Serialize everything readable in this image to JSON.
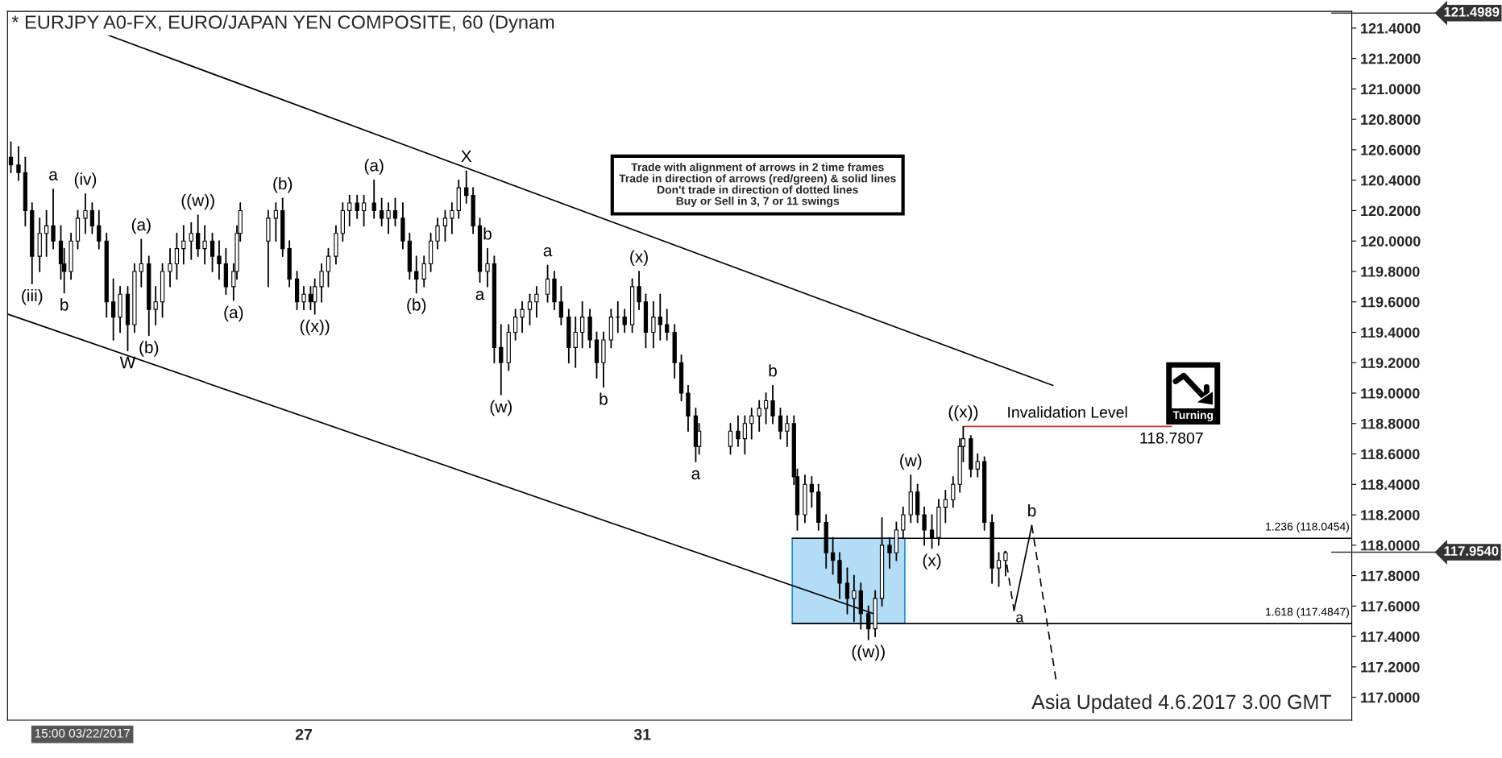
{
  "chart_data": {
    "type": "candlestick",
    "title": "* EURJPY A0-FX, EURO/JAPAN YEN COMPOSITE, 60 (Dynam",
    "xlim": [
      23.5,
      39.38
    ],
    "xticks": [
      27,
      31
    ],
    "ylim": [
      116.85,
      121.51
    ],
    "yticks": [
      {
        "value": 117.0,
        "label": "117.0000"
      },
      {
        "value": 117.2,
        "label": "117.2000"
      },
      {
        "value": 117.4,
        "label": "117.4000"
      },
      {
        "value": 117.6,
        "label": "117.6000"
      },
      {
        "value": 117.8,
        "label": "117.8000"
      },
      {
        "value": 118.0,
        "label": "118.0000"
      },
      {
        "value": 118.2,
        "label": "118.2000"
      },
      {
        "value": 118.4,
        "label": "118.4000"
      },
      {
        "value": 118.6,
        "label": "118.6000"
      },
      {
        "value": 118.8,
        "label": "118.8000"
      },
      {
        "value": 119.0,
        "label": "119.0000"
      },
      {
        "value": 119.2,
        "label": "119.2000"
      },
      {
        "value": 119.4,
        "label": "119.4000"
      },
      {
        "value": 119.6,
        "label": "119.6000"
      },
      {
        "value": 119.8,
        "label": "119.8000"
      },
      {
        "value": 120.0,
        "label": "120.0000"
      },
      {
        "value": 120.2,
        "label": "120.2000"
      },
      {
        "value": 120.4,
        "label": "120.4000"
      },
      {
        "value": 120.6,
        "label": "120.6000"
      },
      {
        "value": 120.8,
        "label": "120.8000"
      },
      {
        "value": 121.0,
        "label": "121.0000"
      },
      {
        "value": 121.2,
        "label": "121.2000"
      },
      {
        "value": 121.4,
        "label": "121.4000"
      }
    ],
    "grid": false,
    "legend": false,
    "color": "#000000",
    "x": [
      23.54,
      23.63,
      23.71,
      23.79,
      23.88,
      23.96,
      24.04,
      24.13,
      24.17,
      24.25,
      24.33,
      24.42,
      24.5,
      24.58,
      24.67,
      24.75,
      24.83,
      24.92,
      25,
      25.08,
      25.17,
      25.25,
      25.33,
      25.42,
      25.5,
      25.58,
      25.67,
      25.75,
      25.83,
      25.92,
      26,
      26.08,
      26.17,
      26.21,
      26.25,
      26.58,
      26.67,
      26.75,
      26.83,
      26.92,
      27,
      27.08,
      27.13,
      27.21,
      27.29,
      27.38,
      27.46,
      27.54,
      27.63,
      27.71,
      27.83,
      27.92,
      28,
      28.08,
      28.17,
      28.25,
      28.33,
      28.42,
      28.5,
      28.58,
      28.67,
      28.75,
      28.83,
      28.92,
      29,
      29.08,
      29.17,
      29.25,
      29.33,
      29.42,
      29.5,
      29.58,
      29.67,
      29.75,
      29.88,
      29.96,
      30.04,
      30.13,
      30.21,
      30.29,
      30.38,
      30.46,
      30.54,
      30.63,
      30.71,
      30.79,
      30.88,
      30.96,
      31.04,
      31.13,
      31.21,
      31.29,
      31.38,
      31.46,
      31.54,
      31.63,
      31.67,
      32.04,
      32.13,
      32.21,
      32.29,
      32.38,
      32.46,
      32.54,
      32.63,
      32.71,
      32.79,
      32.83,
      32.92,
      33,
      33.08,
      33.17,
      33.25,
      33.33,
      33.42,
      33.5,
      33.58,
      33.67,
      33.75,
      33.83,
      33.92,
      34,
      34.08,
      34.17,
      34.25,
      34.33,
      34.42,
      34.5,
      34.58,
      34.67,
      34.75,
      34.79,
      34.88,
      34.96,
      35.04,
      35.13,
      35.21,
      35.29
    ],
    "ohlc": [
      [
        120.55,
        120.65,
        120.45,
        120.5
      ],
      [
        120.5,
        120.62,
        120.4,
        120.45
      ],
      [
        120.45,
        120.55,
        120.1,
        120.2
      ],
      [
        120.2,
        120.25,
        119.72,
        119.9
      ],
      [
        119.9,
        120.15,
        119.8,
        120.05
      ],
      [
        120.05,
        120.2,
        119.9,
        120.1
      ],
      [
        120.1,
        120.34,
        119.95,
        120.0
      ],
      [
        120.0,
        120.1,
        119.75,
        119.85
      ],
      [
        119.85,
        119.95,
        119.66,
        119.8
      ],
      [
        119.8,
        120.05,
        119.75,
        120.0
      ],
      [
        120.0,
        120.2,
        119.95,
        120.15
      ],
      [
        120.15,
        120.31,
        120.05,
        120.2
      ],
      [
        120.2,
        120.25,
        120.05,
        120.1
      ],
      [
        120.1,
        120.2,
        119.95,
        120.0
      ],
      [
        120.0,
        120.05,
        119.5,
        119.6
      ],
      [
        119.6,
        119.75,
        119.35,
        119.5
      ],
      [
        119.5,
        119.7,
        119.4,
        119.65
      ],
      [
        119.65,
        119.7,
        119.28,
        119.45
      ],
      [
        119.45,
        119.85,
        119.4,
        119.8
      ],
      [
        119.8,
        120.01,
        119.7,
        119.85
      ],
      [
        119.85,
        119.9,
        119.38,
        119.55
      ],
      [
        119.55,
        119.7,
        119.45,
        119.6
      ],
      [
        119.6,
        119.85,
        119.5,
        119.8
      ],
      [
        119.8,
        119.95,
        119.7,
        119.85
      ],
      [
        119.85,
        120.05,
        119.75,
        119.95
      ],
      [
        119.95,
        120.1,
        119.85,
        120.0
      ],
      [
        120.0,
        120.12,
        119.88,
        120.05
      ],
      [
        120.05,
        120.17,
        119.9,
        119.95
      ],
      [
        119.95,
        120.1,
        119.85,
        120.0
      ],
      [
        120.0,
        120.05,
        119.8,
        119.9
      ],
      [
        119.9,
        120.0,
        119.75,
        119.85
      ],
      [
        119.85,
        119.95,
        119.65,
        119.7
      ],
      [
        119.7,
        119.85,
        119.61,
        119.8
      ],
      [
        119.8,
        120.1,
        119.75,
        120.05
      ],
      [
        120.05,
        120.25,
        120.0,
        120.2
      ],
      [
        120.0,
        120.2,
        119.7,
        120.15
      ],
      [
        120.15,
        120.25,
        120.0,
        120.2
      ],
      [
        120.2,
        120.28,
        119.9,
        119.95
      ],
      [
        119.95,
        120.0,
        119.7,
        119.75
      ],
      [
        119.75,
        119.8,
        119.55,
        119.6
      ],
      [
        119.6,
        119.7,
        119.55,
        119.65
      ],
      [
        119.65,
        119.7,
        119.55,
        119.6
      ],
      [
        119.6,
        119.75,
        119.52,
        119.7
      ],
      [
        119.7,
        119.85,
        119.6,
        119.8
      ],
      [
        119.8,
        119.95,
        119.7,
        119.9
      ],
      [
        119.9,
        120.1,
        119.85,
        120.05
      ],
      [
        120.05,
        120.25,
        120.0,
        120.2
      ],
      [
        120.2,
        120.3,
        120.1,
        120.25
      ],
      [
        120.25,
        120.3,
        120.15,
        120.2
      ],
      [
        120.2,
        120.3,
        120.1,
        120.25
      ],
      [
        120.25,
        120.4,
        120.15,
        120.2
      ],
      [
        120.2,
        120.28,
        120.1,
        120.15
      ],
      [
        120.15,
        120.25,
        120.05,
        120.2
      ],
      [
        120.2,
        120.28,
        120.1,
        120.15
      ],
      [
        120.15,
        120.25,
        119.95,
        120.0
      ],
      [
        120.0,
        120.05,
        119.75,
        119.8
      ],
      [
        119.8,
        119.9,
        119.66,
        119.75
      ],
      [
        119.75,
        119.9,
        119.7,
        119.85
      ],
      [
        119.85,
        120.05,
        119.8,
        120.0
      ],
      [
        120.0,
        120.15,
        119.95,
        120.1
      ],
      [
        120.1,
        120.2,
        120.0,
        120.15
      ],
      [
        120.15,
        120.25,
        120.05,
        120.2
      ],
      [
        120.2,
        120.4,
        120.15,
        120.35
      ],
      [
        120.35,
        120.46,
        120.25,
        120.3
      ],
      [
        120.3,
        120.35,
        120.05,
        120.1
      ],
      [
        120.1,
        120.15,
        119.73,
        119.8
      ],
      [
        119.8,
        119.95,
        119.7,
        119.85
      ],
      [
        119.85,
        119.9,
        119.2,
        119.3
      ],
      [
        119.3,
        119.45,
        118.99,
        119.2
      ],
      [
        119.2,
        119.45,
        119.15,
        119.4
      ],
      [
        119.4,
        119.55,
        119.35,
        119.5
      ],
      [
        119.5,
        119.6,
        119.4,
        119.55
      ],
      [
        119.55,
        119.65,
        119.45,
        119.6
      ],
      [
        119.6,
        119.7,
        119.5,
        119.65
      ],
      [
        119.65,
        119.84,
        119.6,
        119.75
      ],
      [
        119.75,
        119.8,
        119.55,
        119.6
      ],
      [
        119.6,
        119.7,
        119.45,
        119.5
      ],
      [
        119.5,
        119.55,
        119.2,
        119.3
      ],
      [
        119.3,
        119.5,
        119.17,
        119.4
      ],
      [
        119.4,
        119.6,
        119.3,
        119.5
      ],
      [
        119.5,
        119.55,
        119.3,
        119.35
      ],
      [
        119.35,
        119.4,
        119.1,
        119.2
      ],
      [
        119.2,
        119.4,
        119.04,
        119.35
      ],
      [
        119.35,
        119.55,
        119.3,
        119.5
      ],
      [
        119.5,
        119.6,
        119.4,
        119.5
      ],
      [
        119.5,
        119.55,
        119.4,
        119.45
      ],
      [
        119.45,
        119.75,
        119.4,
        119.7
      ],
      [
        119.7,
        119.8,
        119.55,
        119.6
      ],
      [
        119.6,
        119.65,
        119.3,
        119.4
      ],
      [
        119.4,
        119.6,
        119.3,
        119.5
      ],
      [
        119.5,
        119.65,
        119.35,
        119.45
      ],
      [
        119.45,
        119.55,
        119.35,
        119.4
      ],
      [
        119.4,
        119.45,
        119.1,
        119.2
      ],
      [
        119.2,
        119.25,
        118.95,
        119.0
      ],
      [
        119.0,
        119.05,
        118.75,
        118.85
      ],
      [
        118.85,
        118.9,
        118.55,
        118.65
      ],
      [
        118.65,
        118.8,
        118.6,
        118.75
      ],
      [
        118.65,
        118.8,
        118.6,
        118.75
      ],
      [
        118.75,
        118.85,
        118.65,
        118.7
      ],
      [
        118.7,
        118.85,
        118.6,
        118.8
      ],
      [
        118.8,
        118.9,
        118.7,
        118.85
      ],
      [
        118.85,
        118.95,
        118.75,
        118.9
      ],
      [
        118.9,
        119.0,
        118.8,
        118.95
      ],
      [
        118.95,
        119.05,
        118.8,
        118.85
      ],
      [
        118.85,
        118.9,
        118.7,
        118.75
      ],
      [
        118.75,
        118.85,
        118.65,
        118.8
      ],
      [
        118.8,
        118.85,
        118.4,
        118.45
      ],
      [
        118.45,
        118.5,
        118.1,
        118.2
      ],
      [
        118.2,
        118.46,
        118.15,
        118.4
      ],
      [
        118.4,
        118.45,
        118.25,
        118.35
      ],
      [
        118.35,
        118.4,
        118.1,
        118.15
      ],
      [
        118.15,
        118.2,
        117.85,
        117.95
      ],
      [
        117.95,
        118.05,
        117.81,
        117.9
      ],
      [
        117.9,
        117.95,
        117.65,
        117.75
      ],
      [
        117.75,
        117.85,
        117.55,
        117.65
      ],
      [
        117.65,
        117.8,
        117.5,
        117.7
      ],
      [
        117.7,
        117.75,
        117.45,
        117.55
      ],
      [
        117.55,
        117.6,
        117.38,
        117.45
      ],
      [
        117.45,
        117.7,
        117.4,
        117.65
      ],
      [
        117.65,
        118.18,
        117.6,
        118.0
      ],
      [
        118.0,
        118.05,
        117.85,
        117.95
      ],
      [
        117.95,
        118.15,
        117.9,
        118.1
      ],
      [
        118.1,
        118.25,
        118.05,
        118.2
      ],
      [
        118.2,
        118.46,
        118.15,
        118.35
      ],
      [
        118.35,
        118.4,
        118.15,
        118.2
      ],
      [
        118.2,
        118.25,
        118.0,
        118.1
      ],
      [
        118.1,
        118.2,
        117.98,
        118.05
      ],
      [
        118.05,
        118.3,
        118.0,
        118.25
      ],
      [
        118.25,
        118.36,
        118.15,
        118.3
      ],
      [
        118.3,
        118.45,
        118.25,
        118.4
      ],
      [
        118.4,
        118.7,
        118.35,
        118.65
      ],
      [
        118.65,
        118.78,
        118.55,
        118.7
      ],
      [
        118.7,
        118.72,
        118.45,
        118.5
      ],
      [
        118.5,
        118.6,
        118.45,
        118.55
      ],
      [
        118.55,
        118.58,
        118.1,
        118.15
      ],
      [
        118.15,
        118.2,
        117.75,
        117.85
      ],
      [
        117.85,
        117.95,
        117.73,
        117.9
      ],
      [
        117.9,
        117.96,
        117.8,
        117.95
      ]
    ],
    "series": [
      {
        "type": "area",
        "x": [
          32.77,
          34.1
        ],
        "values": [
          118.0454,
          118.0454
        ],
        "color": "#b3dcf7"
      },
      {
        "type": "line",
        "x": [
          24.66,
          35.85
        ],
        "values": [
          121.36,
          119.05
        ],
        "color": "#000000",
        "line_style": "solid"
      },
      {
        "type": "line",
        "x": [
          23.5,
          33.73
        ],
        "values": [
          119.52,
          117.55
        ],
        "color": "#000000",
        "line_style": "solid"
      },
      {
        "type": "line",
        "x": [
          32.77,
          39.38
        ],
        "values": [
          118.0454,
          118.0454
        ],
        "color": "#000000",
        "line_style": "solid"
      },
      {
        "type": "line",
        "x": [
          32.77,
          39.38
        ],
        "values": [
          117.4847,
          117.4847
        ],
        "color": "#000000",
        "line_style": "solid"
      },
      {
        "type": "line",
        "x": [
          34.8,
          37.25
        ],
        "values": [
          118.7807,
          118.7807
        ],
        "color": "#e03030",
        "line_style": "solid"
      },
      {
        "type": "line",
        "x": [
          35.28,
          35.39
        ],
        "values": [
          117.96,
          117.57
        ],
        "color": "#000000",
        "line_style": "dashed"
      },
      {
        "type": "line",
        "x": [
          35.39,
          35.6
        ],
        "values": [
          117.57,
          118.13
        ],
        "color": "#000000",
        "line_style": "solid"
      },
      {
        "type": "line",
        "x": [
          35.6,
          35.89
        ],
        "values": [
          118.13,
          117.1
        ],
        "color": "#000000",
        "line_style": "dashed"
      }
    ],
    "ref_lines": [
      {
        "axis": "y",
        "value": 121.4989,
        "label": "121.4989"
      },
      {
        "axis": "y",
        "value": 117.954,
        "label": "117.9540"
      }
    ],
    "annotations": [
      {
        "text": "a",
        "x": 24.04,
        "y": 120.34
      },
      {
        "text": "(iii)",
        "x": 23.79,
        "y": 119.72
      },
      {
        "text": "b",
        "x": 24.17,
        "y": 119.66
      },
      {
        "text": "(iv)",
        "x": 24.42,
        "y": 120.31
      },
      {
        "text": "(a)",
        "x": 25.08,
        "y": 120.01
      },
      {
        "text": "W",
        "x": 24.92,
        "y": 119.28
      },
      {
        "text": "(b)",
        "x": 25.17,
        "y": 119.38
      },
      {
        "text": "((w))",
        "x": 25.75,
        "y": 120.17
      },
      {
        "text": "(a)",
        "x": 26.17,
        "y": 119.61
      },
      {
        "text": "(b)",
        "x": 26.75,
        "y": 120.28
      },
      {
        "text": "((x))",
        "x": 27.13,
        "y": 119.52
      },
      {
        "text": "(a)",
        "x": 27.83,
        "y": 120.4
      },
      {
        "text": "(b)",
        "x": 28.33,
        "y": 119.66
      },
      {
        "text": "X",
        "x": 28.92,
        "y": 120.46
      },
      {
        "text": "b",
        "x": 29.17,
        "y": 119.95
      },
      {
        "text": "a",
        "x": 29.08,
        "y": 119.73
      },
      {
        "text": "(w)",
        "x": 29.33,
        "y": 118.99
      },
      {
        "text": "a",
        "x": 29.88,
        "y": 119.84
      },
      {
        "text": "b",
        "x": 30.54,
        "y": 119.04
      },
      {
        "text": "(x)",
        "x": 30.96,
        "y": 119.8
      },
      {
        "text": "a",
        "x": 31.63,
        "y": 118.55
      },
      {
        "text": "b",
        "x": 32.54,
        "y": 119.05
      },
      {
        "text": "((w))",
        "x": 33.67,
        "y": 117.38
      },
      {
        "text": "(w)",
        "x": 34.17,
        "y": 118.46
      },
      {
        "text": "((x))",
        "x": 34.79,
        "y": 118.78
      },
      {
        "text": "(x)",
        "x": 34.42,
        "y": 117.98
      },
      {
        "text": "b",
        "x": 35.6,
        "y": 118.13
      },
      {
        "text": "a",
        "x": 35.39,
        "y": 117.57
      },
      {
        "text": "Invalidation Level",
        "x": 36.02,
        "y": 118.7807
      },
      {
        "text": "118.7807",
        "x": 37.25,
        "y": 118.7807
      },
      {
        "text": "1.236 (118.0454)",
        "x": 39.38,
        "y": 118.0454
      },
      {
        "text": "1.618 (117.4847)",
        "x": 39.38,
        "y": 117.4847
      },
      "Trade with alignment of arrows in 2 time frames\nTrade in direction of arrows (red/green) & solid lines\nDon't trade in direction of dotted lines\nBuy or Sell in 3, 7 or 11 swings",
      "Turning",
      "Asia Updated 4.6.2017 3.00 GMT",
      "15:00 03/22/2017"
    ]
  }
}
